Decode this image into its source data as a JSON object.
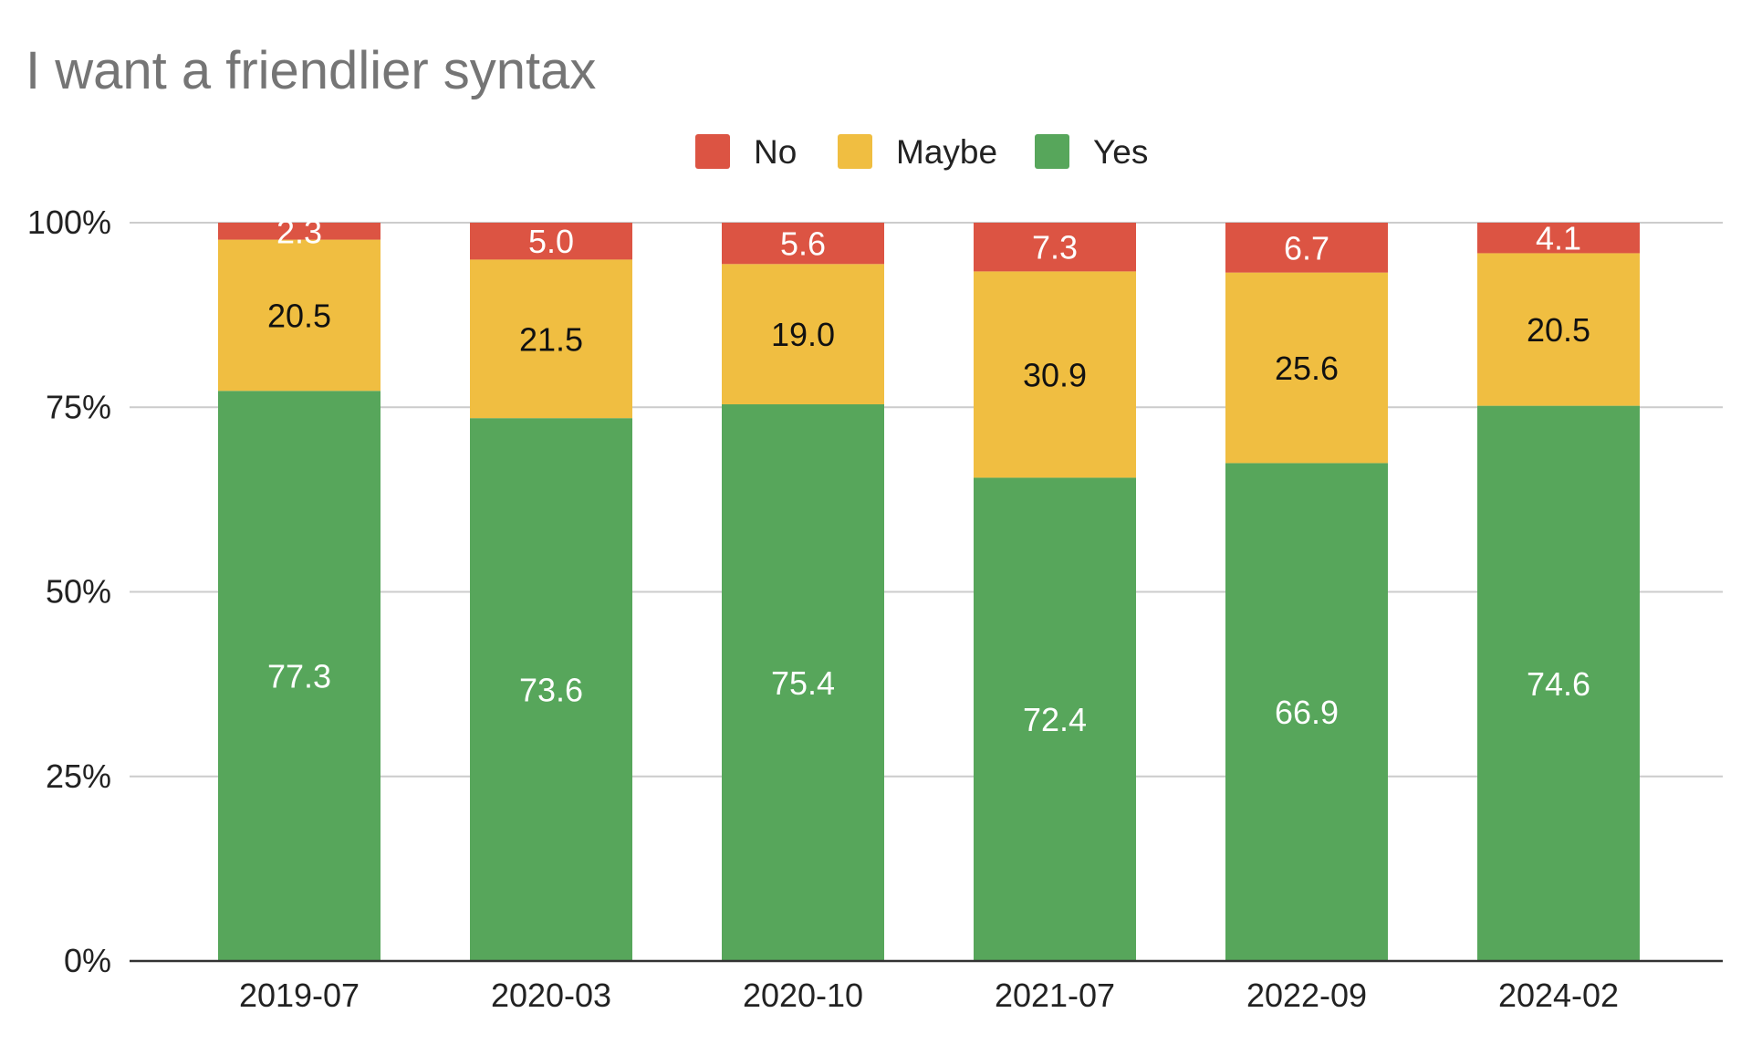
{
  "chart_data": {
    "type": "bar",
    "stacked": true,
    "percent_stacked": true,
    "title": "I want a friendlier syntax",
    "categories": [
      "2019-07",
      "2020-03",
      "2020-10",
      "2021-07",
      "2022-09",
      "2024-02"
    ],
    "series": [
      {
        "name": "Yes",
        "color": "#57a65b",
        "label_color": "#ffffff",
        "values": [
          77.3,
          73.6,
          75.4,
          72.4,
          66.9,
          74.6
        ]
      },
      {
        "name": "Maybe",
        "color": "#f0be41",
        "label_color": "#111111",
        "values": [
          20.5,
          21.5,
          19.0,
          30.9,
          25.6,
          20.5
        ]
      },
      {
        "name": "No",
        "color": "#dc5443",
        "label_color": "#ffffff",
        "values": [
          2.3,
          5.0,
          5.6,
          7.3,
          6.7,
          4.1
        ]
      }
    ],
    "legend_order": [
      "No",
      "Maybe",
      "Yes"
    ],
    "legend_position": "top-center",
    "y_ticks": [
      "0%",
      "25%",
      "50%",
      "75%",
      "100%"
    ],
    "ylim": [
      0,
      100
    ],
    "grid": true,
    "xlabel": "",
    "ylabel": ""
  }
}
